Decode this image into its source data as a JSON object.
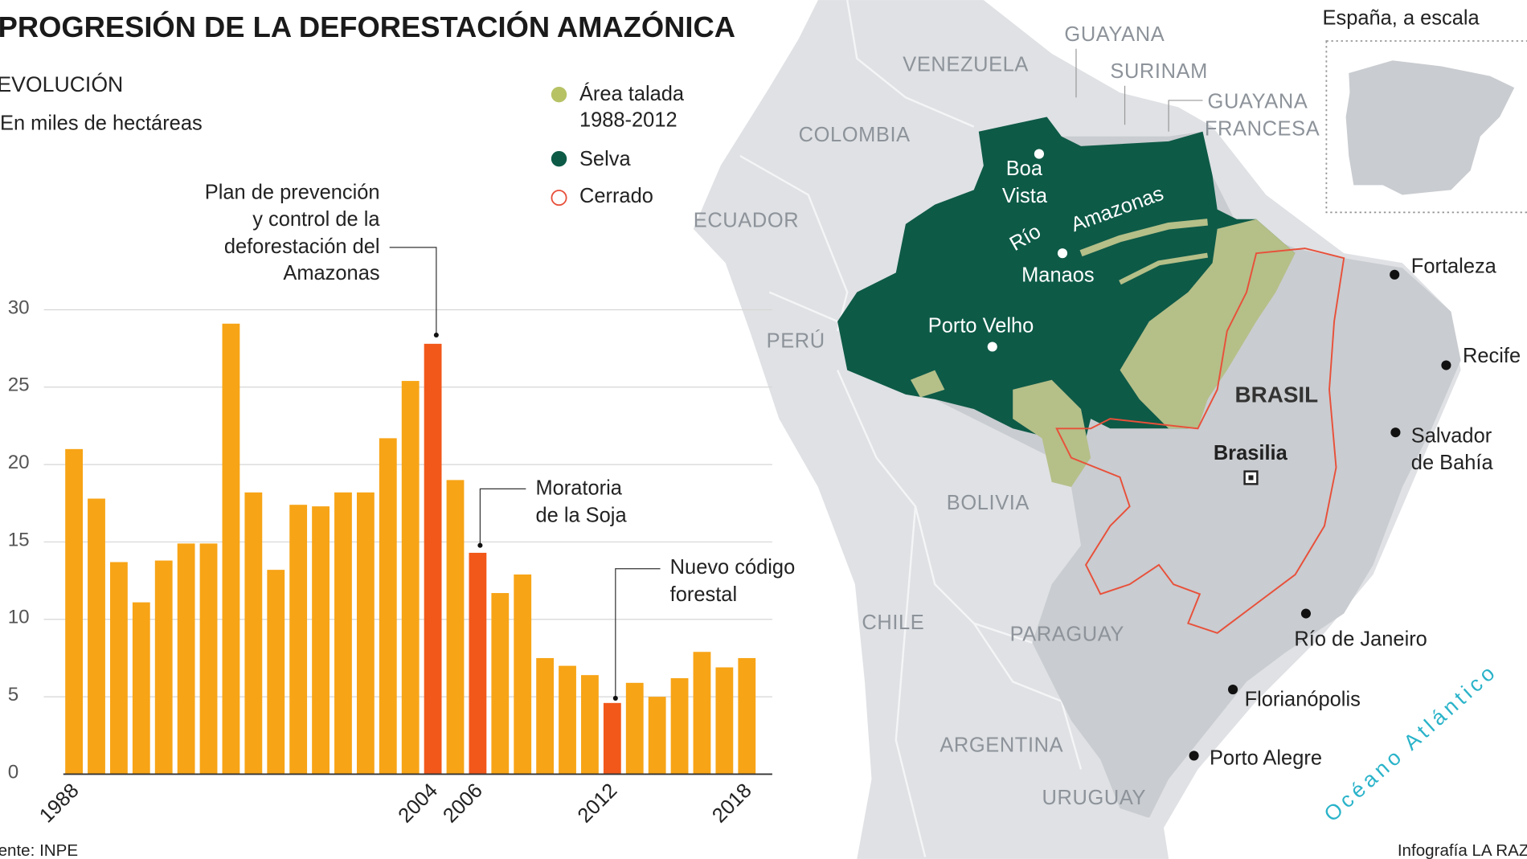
{
  "header": {
    "title": "PROGRESIÓN DE LA DEFORESTACIÓN AMAZÓNICA",
    "section": "EVOLUCIÓN",
    "units": "En miles de hectáreas"
  },
  "legend": {
    "items": [
      {
        "label_lines": [
          "Área talada",
          "1988-2012"
        ],
        "color": "#b7c265",
        "shape": "dot"
      },
      {
        "label_lines": [
          "Selva"
        ],
        "color": "#0d5a47",
        "shape": "dot"
      },
      {
        "label_lines": [
          "Cerrado"
        ],
        "color": "#e8503a",
        "shape": "ring"
      }
    ]
  },
  "annotations": {
    "plan": [
      "Plan de prevención",
      "y control de la",
      "deforestación del",
      "Amazonas"
    ],
    "moratoria": [
      "Moratoria",
      "de la Soja"
    ],
    "codigo": [
      "Nuevo código",
      "forestal"
    ]
  },
  "chart_data": {
    "type": "bar",
    "title": "PROGRESIÓN DE LA DEFORESTACIÓN AMAZÓNICA",
    "ylabel": "En miles de hectáreas",
    "xlabel": "",
    "ylim": [
      0,
      30
    ],
    "yticks": [
      "0",
      "5",
      "10",
      "15",
      "20",
      "25",
      "30"
    ],
    "grid": true,
    "x": [
      1988,
      1989,
      1990,
      1991,
      1992,
      1993,
      1994,
      1995,
      1996,
      1997,
      1998,
      1999,
      2000,
      2001,
      2002,
      2003,
      2004,
      2005,
      2006,
      2007,
      2008,
      2009,
      2010,
      2011,
      2012,
      2013,
      2014,
      2015,
      2016,
      2017,
      2018
    ],
    "values": [
      21.0,
      17.8,
      13.7,
      11.1,
      13.8,
      14.9,
      14.9,
      29.1,
      18.2,
      13.2,
      17.4,
      17.3,
      18.2,
      18.2,
      21.7,
      25.4,
      27.8,
      19.0,
      14.3,
      11.7,
      12.9,
      7.5,
      7.0,
      6.4,
      4.6,
      5.9,
      5.0,
      6.2,
      7.9,
      6.9,
      7.5
    ],
    "highlighted": [
      2004,
      2006,
      2012
    ],
    "xtick_labels": [
      "1988",
      "2004",
      "2006",
      "2012",
      "2018"
    ],
    "colors": {
      "bar": "#f7a416",
      "highlight": "#f2581a"
    }
  },
  "map": {
    "countries": [
      "VENEZUELA",
      "GUAYANA",
      "SURINAM",
      "GUAYANA",
      "FRANCESA",
      "COLOMBIA",
      "ECUADOR",
      "PERÚ",
      "BOLIVIA",
      "CHILE",
      "PARAGUAY",
      "ARGENTINA",
      "URUGUAY"
    ],
    "brasil": "BRASIL",
    "capital": "Brasilia",
    "amazon_cities": [
      "Boa",
      "Vista",
      "Manaos",
      "Porto Velho"
    ],
    "river": [
      "Río",
      "Amazonas"
    ],
    "cities": [
      "Fortaleza",
      "Recife",
      "Salvador",
      "de Bahía",
      "Río de Janeiro",
      "Florianópolis",
      "Porto Alegre"
    ],
    "ocean": "Océano Atlántico",
    "inset_title": "España, a escala"
  },
  "footer": {
    "source": "ente: INPE",
    "credit": "Infografía LA RAZÓN"
  }
}
